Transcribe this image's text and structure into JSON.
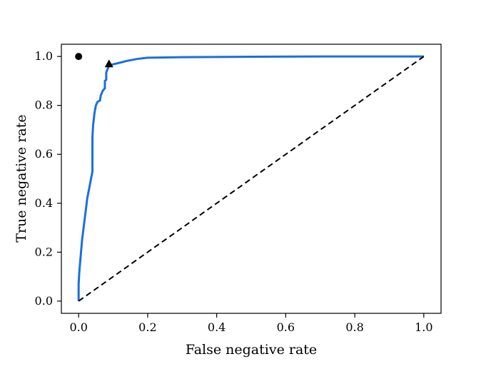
{
  "chart_data": {
    "type": "line",
    "title": "",
    "xlabel": "False negative rate",
    "ylabel": "True negative rate",
    "xlim": [
      -0.05,
      1.05
    ],
    "ylim": [
      -0.05,
      1.05
    ],
    "grid": false,
    "x_ticks": [
      "0.0",
      "0.2",
      "0.4",
      "0.6",
      "0.8",
      "1.0"
    ],
    "y_ticks": [
      "0.0",
      "0.2",
      "0.4",
      "0.6",
      "0.8",
      "1.0"
    ],
    "series": [
      {
        "type": "line",
        "style": "solid",
        "color": "#1a6fdf",
        "x": [
          0.0,
          0.0,
          0.002,
          0.01,
          0.025,
          0.04,
          0.04,
          0.042,
          0.046,
          0.05,
          0.055,
          0.062,
          0.064,
          0.07,
          0.076,
          0.076,
          0.08,
          0.08,
          0.088,
          0.1,
          0.115,
          0.14,
          0.17,
          0.2,
          0.3,
          0.5,
          0.7,
          0.9,
          1.0
        ],
        "y": [
          0.0,
          0.07,
          0.12,
          0.25,
          0.42,
          0.53,
          0.67,
          0.72,
          0.77,
          0.8,
          0.815,
          0.82,
          0.84,
          0.86,
          0.87,
          0.9,
          0.905,
          0.935,
          0.963,
          0.968,
          0.973,
          0.982,
          0.99,
          0.995,
          0.997,
          0.999,
          1.0,
          1.0,
          1.0
        ]
      },
      {
        "type": "line",
        "style": "dashed",
        "color": "#000000",
        "x": [
          0.0,
          1.0
        ],
        "y": [
          0.0,
          1.0
        ]
      }
    ],
    "markers": [
      {
        "shape": "circle",
        "x": 0.0,
        "y": 1.0,
        "color": "#000000"
      },
      {
        "shape": "triangle",
        "x": 0.088,
        "y": 0.97,
        "color": "#000000"
      }
    ]
  }
}
